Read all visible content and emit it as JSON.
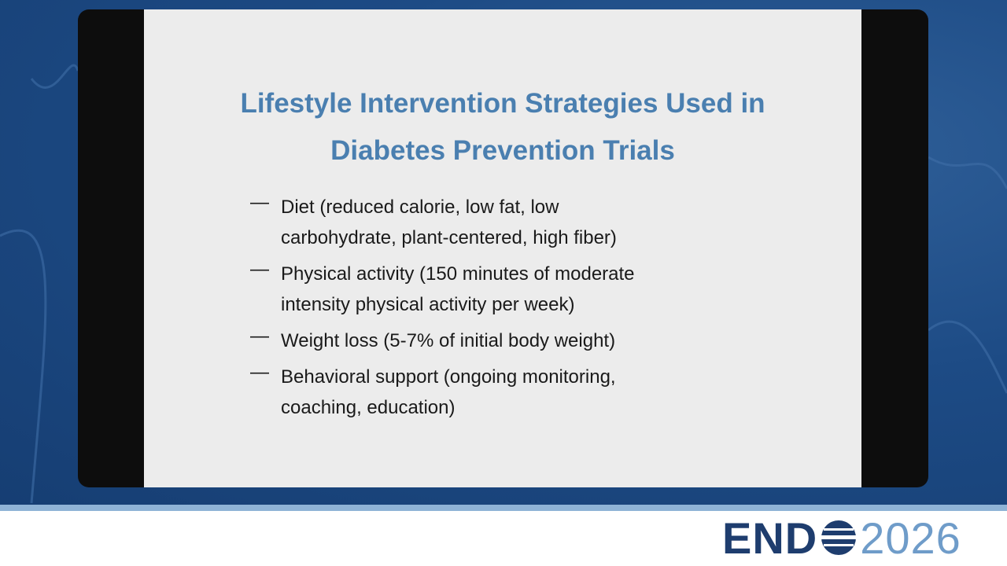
{
  "slide": {
    "title_lines": [
      "Lifestyle Intervention Strategies Used in",
      "Diabetes Prevention Trials"
    ],
    "bullet_marker": "—",
    "bullets": [
      {
        "lines": [
          "Diet (reduced calorie, low fat, low",
          "carbohydrate, plant-centered, high fiber)"
        ]
      },
      {
        "lines": [
          "Physical activity (150 minutes of moderate",
          "intensity physical activity per week)"
        ]
      },
      {
        "lines": [
          "Weight loss (5-7% of initial body weight)"
        ]
      },
      {
        "lines": [
          "Behavioral support (ongoing monitoring,",
          "coaching, education)"
        ]
      }
    ]
  },
  "logo": {
    "left": "END",
    "right": "2026"
  }
}
